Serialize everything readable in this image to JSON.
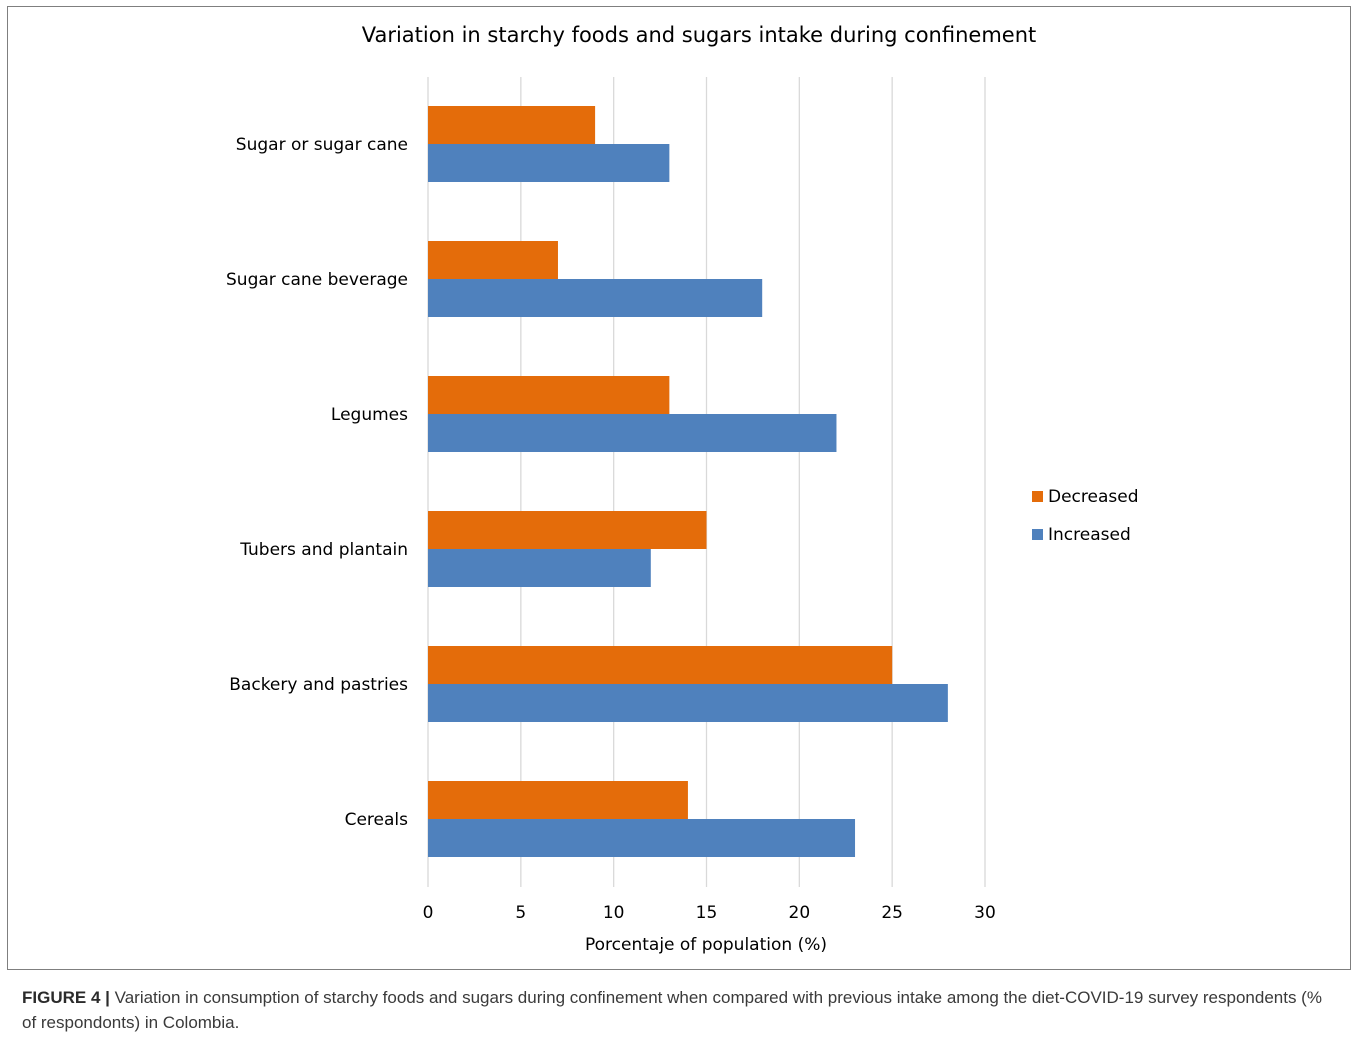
{
  "chart_data": {
    "type": "bar",
    "orientation": "horizontal",
    "title": "Variation in starchy foods and sugars intake during confinement",
    "xlabel": "Porcentaje of population (%)",
    "ylabel": "",
    "xlim": [
      0,
      30
    ],
    "xticks": [
      "0",
      "5",
      "10",
      "15",
      "20",
      "25",
      "30"
    ],
    "categories": [
      "Sugar or sugar cane",
      "Sugar cane beverage",
      "Legumes",
      "Tubers and plantain",
      "Backery and pastries",
      "Cereals"
    ],
    "series": [
      {
        "name": "Decreased",
        "color": "#E46C0A",
        "values": [
          9,
          7,
          13,
          15,
          25,
          14
        ]
      },
      {
        "name": "Increased",
        "color": "#4F81BD",
        "values": [
          13,
          18,
          22,
          12,
          28,
          23
        ]
      }
    ],
    "grid": "vertical",
    "legend": "right"
  },
  "caption": {
    "label": "FIGURE 4 |",
    "text": "Variation in consumption of starchy foods and sugars during confinement when compared with previous intake among the diet-COVID-19 survey respondents (% of respondonts) in Colombia."
  }
}
